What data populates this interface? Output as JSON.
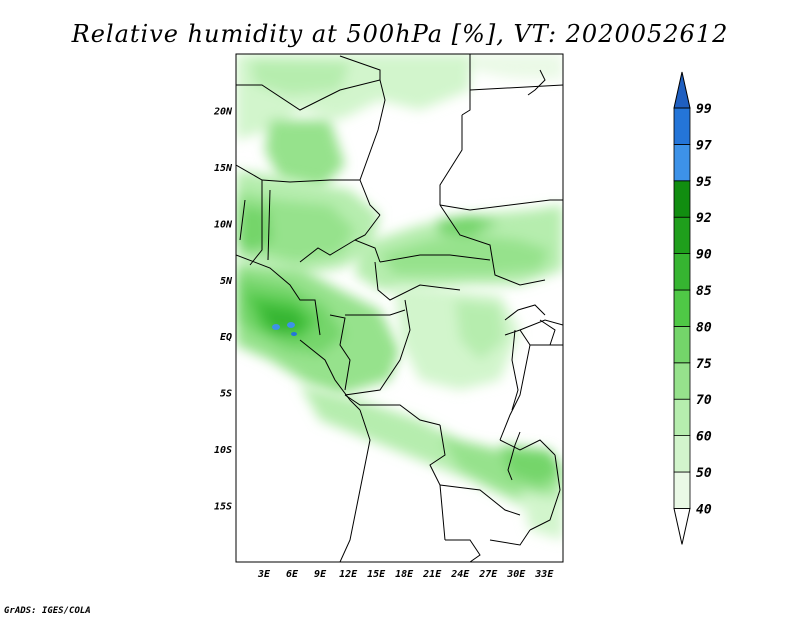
{
  "title": "Relative humidity at 500hPa [%], VT: 2020052612",
  "credit": "GrADS: IGES/COLA",
  "map": {
    "lat_labels": [
      "20N",
      "15N",
      "10N",
      "5N",
      "EQ",
      "5S",
      "10S",
      "15S"
    ],
    "lon_labels": [
      "3E",
      "6E",
      "9E",
      "12E",
      "15E",
      "18E",
      "21E",
      "24E",
      "27E",
      "30E",
      "33E"
    ],
    "lat_values": [
      20,
      15,
      10,
      5,
      0,
      -5,
      -10,
      -15
    ],
    "lon_values": [
      3,
      6,
      9,
      12,
      15,
      18,
      21,
      24,
      27,
      30,
      33
    ],
    "lon_range": [
      0,
      35
    ],
    "lat_range": [
      -20,
      25
    ]
  },
  "colorbar": {
    "labels": [
      "40",
      "50",
      "60",
      "70",
      "75",
      "80",
      "85",
      "90",
      "92",
      "95",
      "97",
      "99"
    ],
    "colors": [
      "#ffffff",
      "#eaf9e6",
      "#d2f5cc",
      "#b6edae",
      "#96e28c",
      "#74d56a",
      "#4fc846",
      "#36b531",
      "#1f9f1c",
      "#118d10",
      "#3d92e8",
      "#2475d8",
      "#1f5fc0"
    ]
  }
}
